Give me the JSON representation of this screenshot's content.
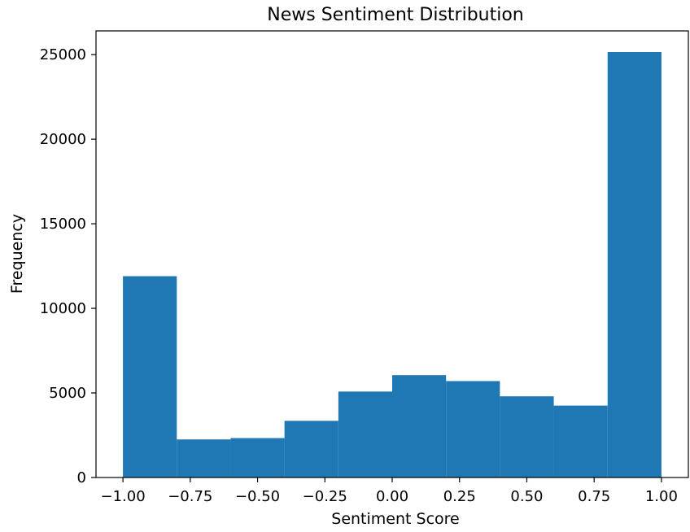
{
  "chart_data": {
    "type": "bar",
    "title": "News Sentiment Distribution",
    "xlabel": "Sentiment Score",
    "ylabel": "Frequency",
    "bin_edges": [
      -1.0,
      -0.8,
      -0.6,
      -0.4,
      -0.2,
      0.0,
      0.2,
      0.4,
      0.6,
      0.8,
      1.0
    ],
    "values": [
      11900,
      2250,
      2330,
      3350,
      5080,
      6050,
      5700,
      4800,
      4250,
      25150
    ],
    "xlim": [
      -1.1,
      1.1
    ],
    "ylim": [
      0,
      26400
    ],
    "x_ticks": [
      -1.0,
      -0.75,
      -0.5,
      -0.25,
      0.0,
      0.25,
      0.5,
      0.75,
      1.0
    ],
    "x_tick_labels": [
      "−1.00",
      "−0.75",
      "−0.50",
      "−0.25",
      "0.00",
      "0.25",
      "0.50",
      "0.75",
      "1.00"
    ],
    "y_ticks": [
      0,
      5000,
      10000,
      15000,
      20000,
      25000
    ],
    "y_tick_labels": [
      "0",
      "5000",
      "10000",
      "15000",
      "20000",
      "25000"
    ],
    "bar_color": "#1f77b4",
    "grid": false,
    "legend": "none"
  }
}
